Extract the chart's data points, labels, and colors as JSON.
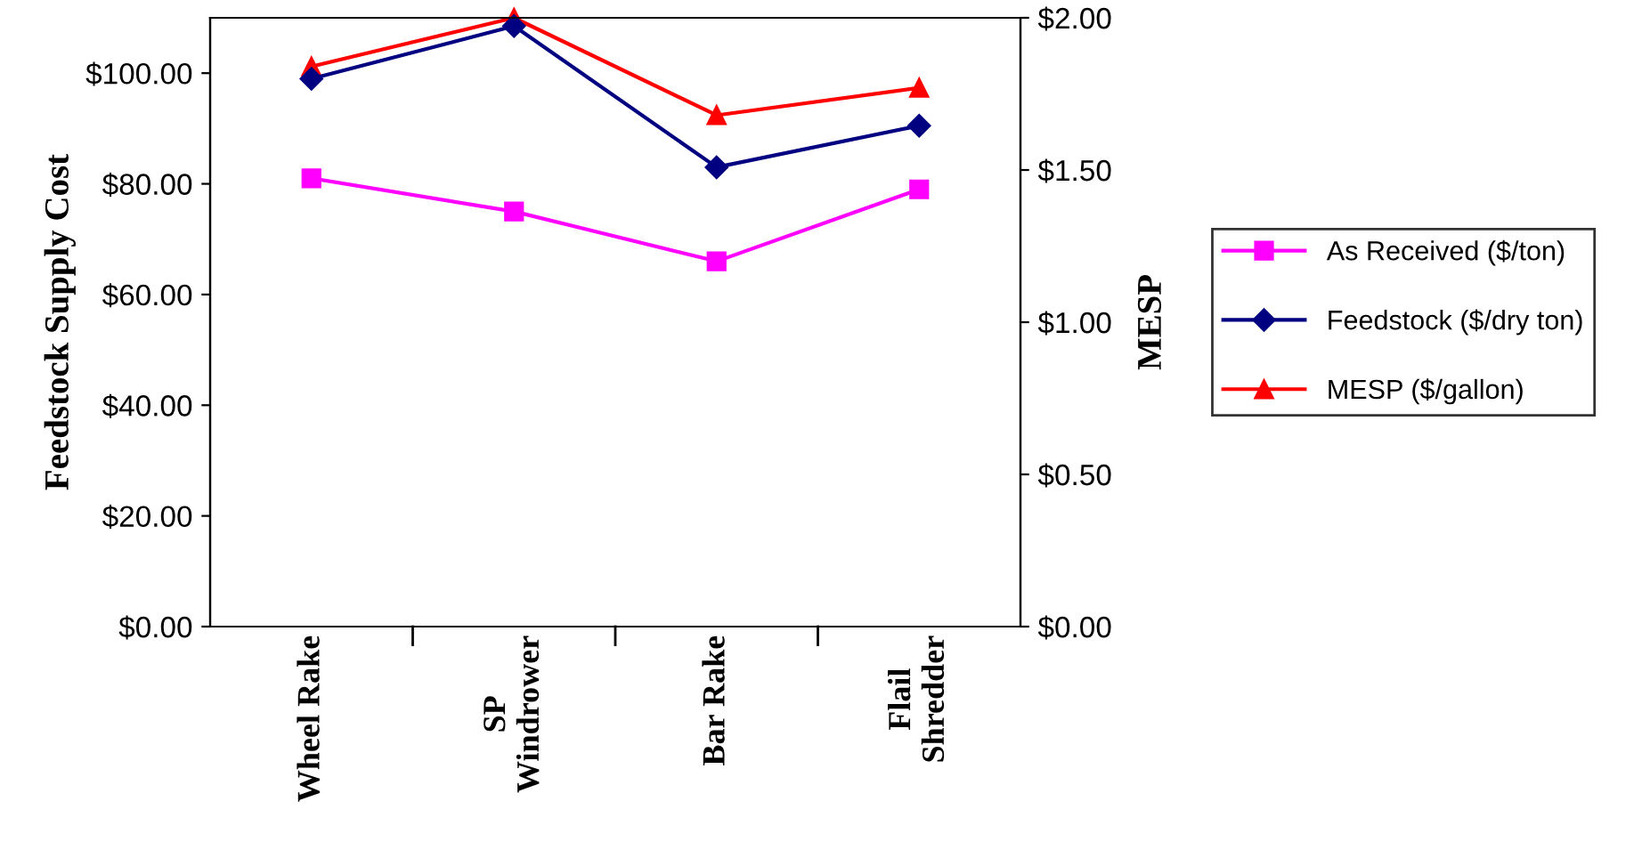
{
  "chart_data": {
    "type": "line",
    "categories": [
      "Wheel Rake",
      "SP\nWindrower",
      "Bar Rake",
      "Flail\nShredder"
    ],
    "ylabel": "Feedstock Supply Cost",
    "y2label": "MESP",
    "ylim": [
      0,
      110
    ],
    "yticks": [
      {
        "value": 0,
        "label": "$0.00"
      },
      {
        "value": 20,
        "label": "$20.00"
      },
      {
        "value": 40,
        "label": "$40.00"
      },
      {
        "value": 60,
        "label": "$60.00"
      },
      {
        "value": 80,
        "label": "$80.00"
      },
      {
        "value": 100,
        "label": "$100.00"
      }
    ],
    "y2lim": [
      0,
      2
    ],
    "y2ticks": [
      {
        "value": 0,
        "label": "$0.00"
      },
      {
        "value": 0.5,
        "label": "$0.50"
      },
      {
        "value": 1,
        "label": "$1.00"
      },
      {
        "value": 1.5,
        "label": "$1.50"
      },
      {
        "value": 2,
        "label": "$2.00"
      }
    ],
    "legend": "right",
    "grid": false,
    "series": [
      {
        "name": "As Received ($/ton)",
        "color": "#ff00ff",
        "marker": "square",
        "values": [
          81,
          75,
          66,
          79
        ]
      },
      {
        "name": "Feedstock ($/dry ton)",
        "color": "#000080",
        "marker": "diamond",
        "values": [
          99,
          108.5,
          83,
          90.5
        ]
      },
      {
        "name": "MESP ($/gallon)",
        "color": "#ff0000",
        "marker": "triangle",
        "axis": "y2",
        "values": [
          1.84,
          2.0,
          1.68,
          1.77
        ]
      }
    ]
  }
}
